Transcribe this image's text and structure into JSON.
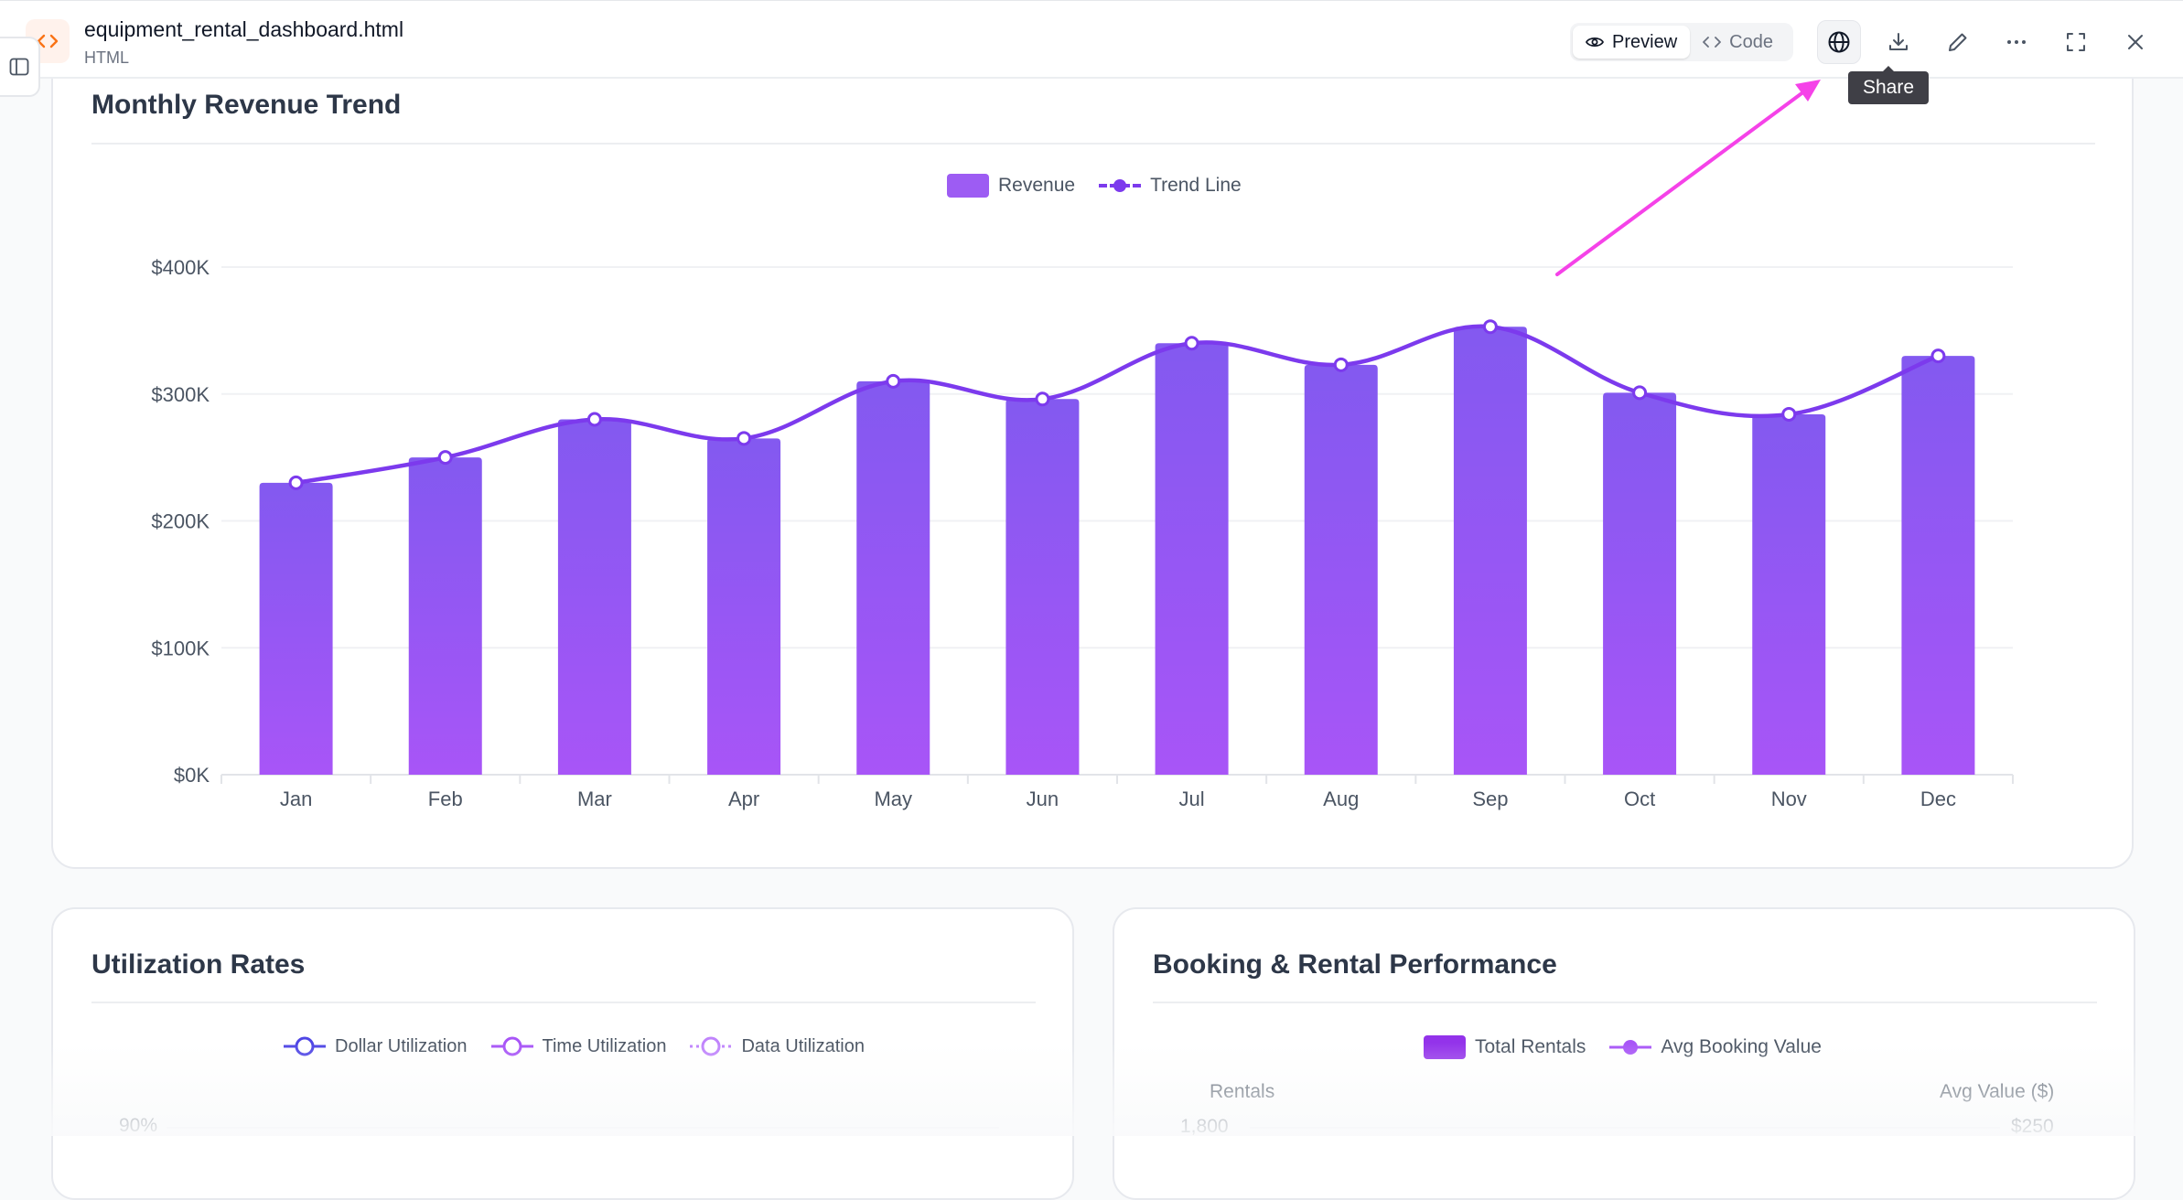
{
  "topbar": {
    "file_name": "equipment_rental_dashboard.html",
    "file_type": "HTML",
    "preview_label": "Preview",
    "code_label": "Code",
    "tooltip": "Share",
    "accent": "#f97316"
  },
  "annotation": {
    "arrow_color": "#f542e8"
  },
  "revenue_card": {
    "title": "Monthly Revenue Trend",
    "legend": {
      "revenue": "Revenue",
      "trend": "Trend Line"
    }
  },
  "utilization_card": {
    "title": "Utilization Rates",
    "legend": {
      "dollar": "Dollar Utilization",
      "time": "Time Utilization",
      "data": "Data Utilization"
    },
    "first_tick": "90%"
  },
  "booking_card": {
    "title": "Booking & Rental Performance",
    "legend": {
      "rentals": "Total Rentals",
      "avg": "Avg Booking Value"
    },
    "left_axis_label": "Rentals",
    "right_axis_label": "Avg Value ($)",
    "left_first_tick": "1,800",
    "right_first_tick": "$250"
  },
  "chart_data": [
    {
      "type": "bar",
      "title": "Monthly Revenue Trend",
      "categories": [
        "Jan",
        "Feb",
        "Mar",
        "Apr",
        "May",
        "Jun",
        "Jul",
        "Aug",
        "Sep",
        "Oct",
        "Nov",
        "Dec"
      ],
      "series": [
        {
          "name": "Revenue",
          "type": "bar",
          "values": [
            230000,
            250000,
            280000,
            265000,
            310000,
            296000,
            340000,
            323000,
            353000,
            301000,
            284000,
            330000
          ],
          "color": "#8b5cf6"
        },
        {
          "name": "Trend Line",
          "type": "line",
          "values": [
            230000,
            250000,
            280000,
            265000,
            310000,
            296000,
            340000,
            323000,
            353000,
            301000,
            284000,
            330000
          ],
          "color": "#7c3aed"
        }
      ],
      "yticks": [
        "$0K",
        "$100K",
        "$200K",
        "$300K",
        "$400K"
      ],
      "ylim": [
        0,
        400000
      ],
      "grid": true,
      "legend_position": "top-center"
    },
    {
      "type": "line",
      "title": "Utilization Rates",
      "series": [
        {
          "name": "Dollar Utilization",
          "color": "#4f46e5"
        },
        {
          "name": "Time Utilization",
          "color": "#a855f7"
        },
        {
          "name": "Data Utilization",
          "color": "#c084fc"
        }
      ],
      "yticks_visible": [
        "90%"
      ]
    },
    {
      "type": "bar",
      "title": "Booking & Rental Performance",
      "series": [
        {
          "name": "Total Rentals",
          "color": "#9333ea"
        },
        {
          "name": "Avg Booking Value",
          "color": "#a855f7"
        }
      ],
      "ylabel": "Rentals",
      "y2label": "Avg Value ($)",
      "yticks_visible": [
        "1,800"
      ],
      "y2ticks_visible": [
        "$250"
      ]
    }
  ]
}
